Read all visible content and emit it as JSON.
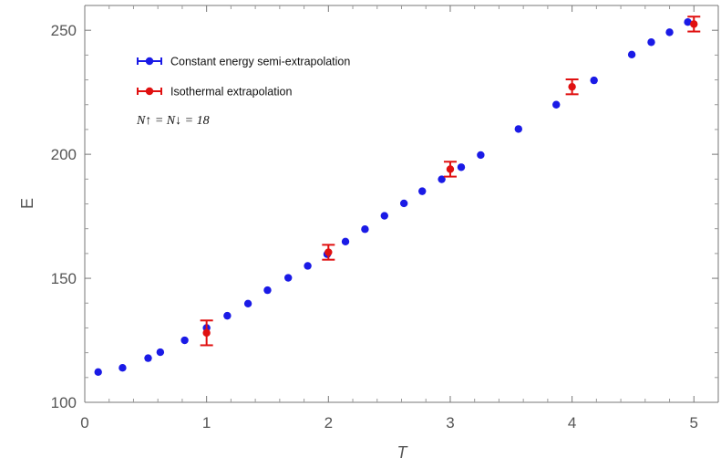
{
  "chart_data": {
    "type": "scatter",
    "xlabel": "T",
    "ylabel": "E",
    "xlim": [
      0,
      5.2
    ],
    "ylim": [
      100,
      260
    ],
    "x_ticks": [
      "0",
      "1",
      "2",
      "3",
      "4",
      "5"
    ],
    "y_ticks": [
      "100",
      "150",
      "200",
      "250"
    ],
    "x_tick_values": [
      0,
      1,
      2,
      3,
      4,
      5
    ],
    "y_tick_values": [
      100,
      150,
      200,
      250
    ],
    "grid": false,
    "legend_position": "top-left",
    "annotation": "N↑ = N↓ = 18",
    "series": [
      {
        "name": "Constant energy semi-extrapolation",
        "color": "#1a1ae6",
        "points": [
          [
            0.11,
            112.2
          ],
          [
            0.31,
            113.9
          ],
          [
            0.52,
            117.8
          ],
          [
            0.62,
            120.2
          ],
          [
            0.82,
            125.0
          ],
          [
            1.0,
            130.0
          ],
          [
            1.17,
            134.9
          ],
          [
            1.34,
            139.8
          ],
          [
            1.5,
            145.2
          ],
          [
            1.67,
            150.2
          ],
          [
            1.83,
            155.0
          ],
          [
            1.99,
            159.7
          ],
          [
            2.14,
            164.8
          ],
          [
            2.3,
            169.8
          ],
          [
            2.46,
            175.2
          ],
          [
            2.62,
            180.2
          ],
          [
            2.77,
            185.1
          ],
          [
            2.93,
            189.9
          ],
          [
            3.09,
            194.8
          ],
          [
            3.25,
            199.7
          ],
          [
            3.56,
            210.2
          ],
          [
            3.87,
            220.0
          ],
          [
            4.18,
            229.8
          ],
          [
            4.49,
            240.2
          ],
          [
            4.65,
            245.2
          ],
          [
            4.8,
            249.2
          ],
          [
            4.95,
            253.3
          ]
        ]
      },
      {
        "name": "Isothermal extrapolation",
        "color": "#e01010",
        "points": [
          [
            1.0,
            128.0,
            5.0
          ],
          [
            2.0,
            160.5,
            3.0
          ],
          [
            3.0,
            194.0,
            3.0
          ],
          [
            4.0,
            227.2,
            3.0
          ],
          [
            5.0,
            252.5,
            3.0
          ]
        ]
      }
    ]
  }
}
